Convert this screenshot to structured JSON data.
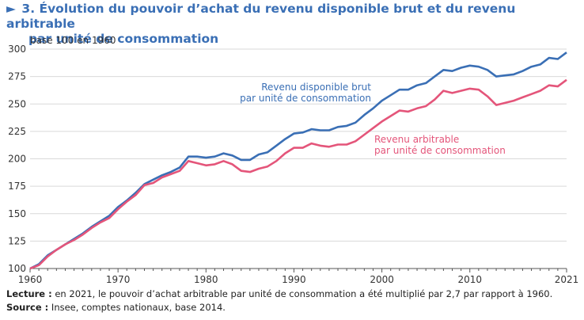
{
  "header": {
    "marker": "►",
    "title_line1": "3. Évolution du pouvoir d’achat du revenu disponible brut et du revenu arbitrable",
    "title_line2": "par unité de consommation"
  },
  "footer": {
    "lecture_label": "Lecture :",
    "lecture_text": " en 2021, le pouvoir d’achat arbitrable par unité de consommation a été multiplié par 2,7 par rapport à 1960.",
    "source_label": "Source :",
    "source_text": " Insee, comptes nationaux, base 2014."
  },
  "chart_data": {
    "type": "line",
    "title": "3. Évolution du pouvoir d’achat du revenu disponible brut et du revenu arbitrable par unité de consommation",
    "ylabel": "base 100 en 1960",
    "xlabel": "",
    "xlim": [
      1960,
      2021
    ],
    "ylim": [
      100,
      300
    ],
    "xticks": [
      1960,
      1970,
      1980,
      1990,
      2000,
      2010,
      2021
    ],
    "yticks": [
      100,
      125,
      150,
      175,
      200,
      225,
      250,
      275,
      300
    ],
    "grid": "horizontal",
    "x": [
      1960,
      1961,
      1962,
      1963,
      1964,
      1965,
      1966,
      1967,
      1968,
      1969,
      1970,
      1971,
      1972,
      1973,
      1974,
      1975,
      1976,
      1977,
      1978,
      1979,
      1980,
      1981,
      1982,
      1983,
      1984,
      1985,
      1986,
      1987,
      1988,
      1989,
      1990,
      1991,
      1992,
      1993,
      1994,
      1995,
      1996,
      1997,
      1998,
      1999,
      2000,
      2001,
      2002,
      2003,
      2004,
      2005,
      2006,
      2007,
      2008,
      2009,
      2010,
      2011,
      2012,
      2013,
      2014,
      2015,
      2016,
      2017,
      2018,
      2019,
      2020,
      2021
    ],
    "series": [
      {
        "name": "Revenu disponible brut par unité de consommation",
        "label_line1": "Revenu disponible brut",
        "label_line2": "par unité de consommation",
        "color": "#3a6fb5",
        "values": [
          100,
          104,
          112,
          117,
          122,
          127,
          132,
          138,
          143,
          148,
          156,
          162,
          169,
          177,
          181,
          185,
          188,
          192,
          202,
          202,
          201,
          202,
          205,
          203,
          199,
          199,
          204,
          206,
          212,
          218,
          223,
          224,
          227,
          226,
          226,
          229,
          230,
          233,
          240,
          246,
          253,
          258,
          263,
          263,
          267,
          269,
          275,
          281,
          280,
          283,
          285,
          284,
          281,
          275,
          276,
          277,
          280,
          284,
          286,
          292,
          291,
          297
        ]
      },
      {
        "name": "Revenu arbitrable par unité de consommation",
        "label_line1": "Revenu arbitrable",
        "label_line2": "par unité de consommation",
        "color": "#e4557a",
        "values": [
          100,
          103,
          111,
          117,
          122,
          126,
          131,
          137,
          142,
          146,
          154,
          161,
          167,
          176,
          178,
          183,
          186,
          189,
          198,
          196,
          194,
          195,
          198,
          195,
          189,
          188,
          191,
          193,
          198,
          205,
          210,
          210,
          214,
          212,
          211,
          213,
          213,
          216,
          222,
          228,
          234,
          239,
          244,
          243,
          246,
          248,
          254,
          262,
          260,
          262,
          264,
          263,
          257,
          249,
          251,
          253,
          256,
          259,
          262,
          267,
          266,
          272
        ]
      }
    ]
  }
}
